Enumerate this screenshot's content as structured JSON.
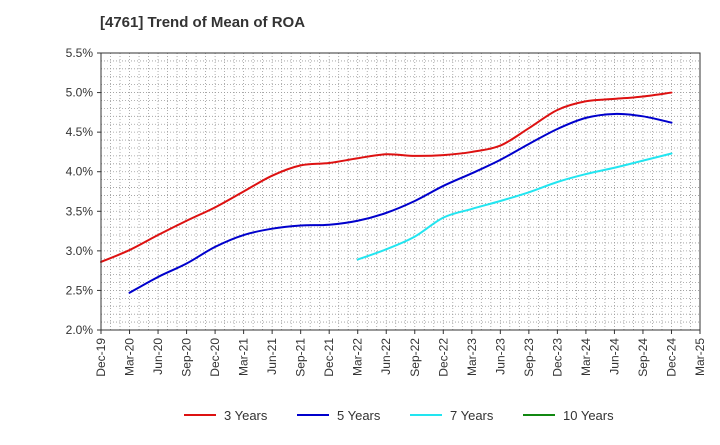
{
  "chart_data": {
    "type": "line",
    "title": "[4761]  Trend of Mean of ROA",
    "xlabel": "",
    "ylabel": "",
    "x": [
      "Dec-19",
      "Mar-20",
      "Jun-20",
      "Sep-20",
      "Dec-20",
      "Mar-21",
      "Jun-21",
      "Sep-21",
      "Dec-21",
      "Mar-22",
      "Jun-22",
      "Sep-22",
      "Dec-22",
      "Mar-23",
      "Jun-23",
      "Sep-23",
      "Dec-23",
      "Mar-24",
      "Jun-24",
      "Sep-24",
      "Dec-24",
      "Mar-25"
    ],
    "ylim": [
      2.0,
      5.5
    ],
    "yticks": [
      "2.0%",
      "2.5%",
      "3.0%",
      "3.5%",
      "4.0%",
      "4.5%",
      "5.0%",
      "5.5%"
    ],
    "ytick_values": [
      2.0,
      2.5,
      3.0,
      3.5,
      4.0,
      4.5,
      5.0,
      5.5
    ],
    "grid": true,
    "legend_position": "bottom",
    "series": [
      {
        "name": "3 Years",
        "color": "#dd1111",
        "values": [
          2.86,
          3.01,
          3.2,
          3.38,
          3.55,
          3.75,
          3.95,
          4.08,
          4.11,
          4.17,
          4.22,
          4.2,
          4.21,
          4.25,
          4.33,
          4.55,
          4.78,
          4.89,
          4.92,
          4.95,
          5.0,
          null
        ]
      },
      {
        "name": "5 Years",
        "color": "#0000cc",
        "values": [
          null,
          2.47,
          2.67,
          2.84,
          3.05,
          3.2,
          3.28,
          3.32,
          3.33,
          3.38,
          3.48,
          3.63,
          3.82,
          3.98,
          4.15,
          4.35,
          4.54,
          4.68,
          4.73,
          4.7,
          4.62,
          null
        ]
      },
      {
        "name": "7 Years",
        "color": "#22e5f0",
        "values": [
          null,
          null,
          null,
          null,
          null,
          null,
          null,
          null,
          null,
          2.89,
          3.02,
          3.18,
          3.42,
          3.53,
          3.63,
          3.74,
          3.87,
          3.97,
          4.05,
          4.14,
          4.23,
          null
        ]
      },
      {
        "name": "10 Years",
        "color": "#118811",
        "values": [
          null,
          null,
          null,
          null,
          null,
          null,
          null,
          null,
          null,
          null,
          null,
          null,
          null,
          null,
          null,
          null,
          null,
          null,
          null,
          null,
          null,
          null
        ]
      }
    ]
  }
}
